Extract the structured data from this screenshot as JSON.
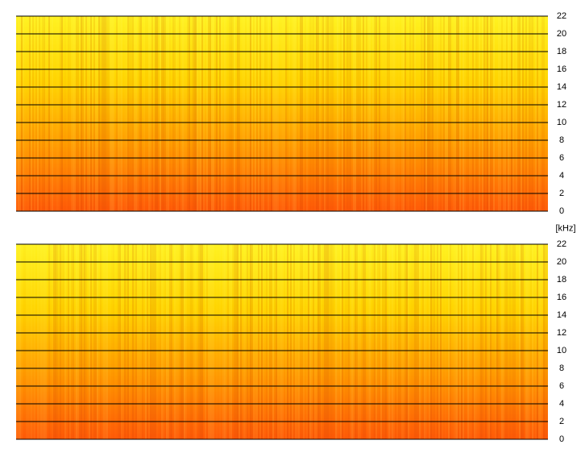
{
  "chart_data": [
    {
      "type": "spectrogram",
      "ylim": [
        0,
        22
      ],
      "yticks": [
        0,
        2,
        4,
        6,
        8,
        10,
        12,
        14,
        16,
        18,
        20,
        22
      ],
      "grid": true,
      "colormap": [
        "#ff5a08",
        "#ff9a00",
        "#ffd400",
        "#fff220"
      ],
      "ylabel": "[kHz]"
    },
    {
      "type": "spectrogram",
      "ylim": [
        0,
        22
      ],
      "yticks": [
        0,
        2,
        4,
        6,
        8,
        10,
        12,
        14,
        16,
        18,
        20,
        22
      ],
      "grid": true,
      "colormap": [
        "#ff5a08",
        "#ff9a00",
        "#ffd400",
        "#fff220"
      ]
    }
  ]
}
